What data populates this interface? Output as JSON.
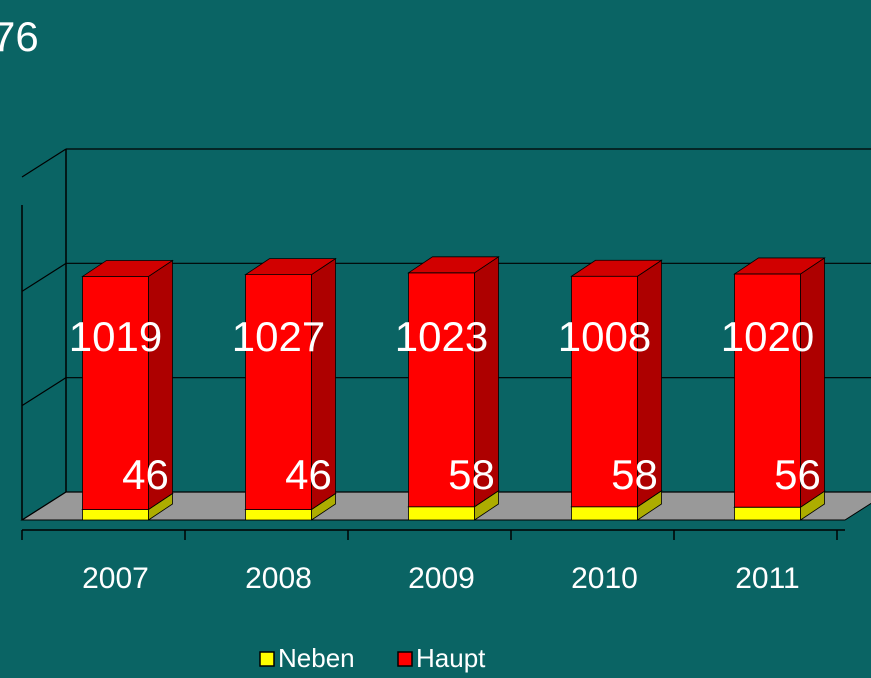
{
  "chart_data": {
    "type": "bar3d_stacked",
    "annotations": [
      "76"
    ],
    "categories": [
      "2007",
      "2008",
      "2009",
      "2010",
      "2011"
    ],
    "series": [
      {
        "name": "Neben",
        "color": "#ffff00",
        "values": [
          46,
          46,
          58,
          58,
          56
        ]
      },
      {
        "name": "Haupt",
        "color": "#ff0000",
        "values": [
          1019,
          1027,
          1023,
          1008,
          1020
        ]
      }
    ],
    "ylim": [
      0,
      1500
    ],
    "yticks": [
      0,
      500,
      1000,
      1500
    ],
    "grid": true
  }
}
